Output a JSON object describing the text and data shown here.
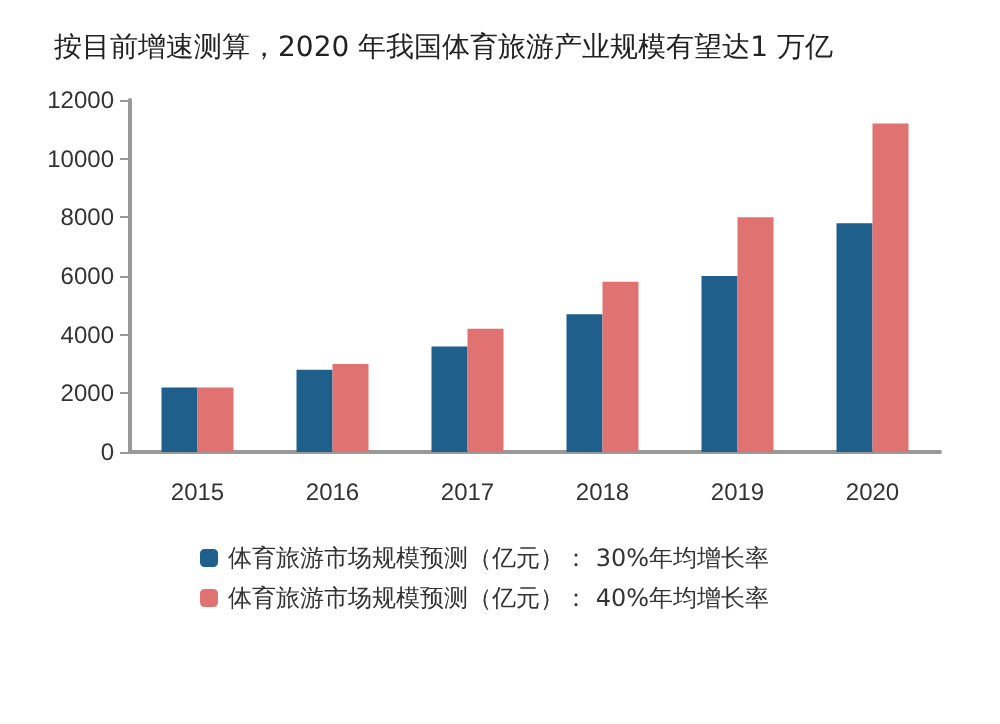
{
  "chart_data": {
    "type": "bar",
    "title": "按目前增速测算，2020 年我国体育旅游产业规模有望达1 万亿",
    "categories": [
      "2015",
      "2016",
      "2017",
      "2018",
      "2019",
      "2020"
    ],
    "series": [
      {
        "name": "体育旅游市场规模预测（亿元）： 30%年均增长率",
        "color": "#1f5f8b",
        "values": [
          2200,
          2800,
          3600,
          4700,
          6000,
          7800
        ]
      },
      {
        "name": "体育旅游市场规模预测（亿元）： 40%年均增长率",
        "color": "#e07272",
        "values": [
          2200,
          3000,
          4200,
          5800,
          8000,
          11200
        ]
      }
    ],
    "ylim": [
      0,
      12000
    ],
    "yticks": [
      0,
      2000,
      4000,
      6000,
      8000,
      10000,
      12000
    ],
    "grid": false,
    "legend": "bottom left"
  }
}
